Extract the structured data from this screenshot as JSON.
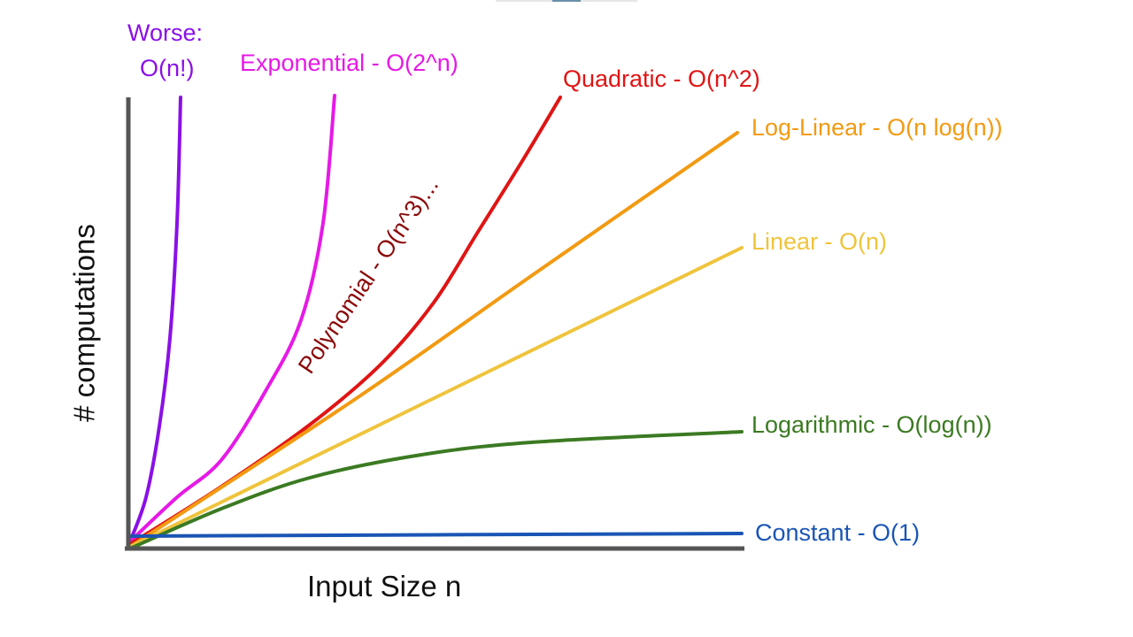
{
  "chart_data": {
    "type": "line",
    "title": "",
    "xlabel": "Input Size n",
    "ylabel": "# computations",
    "grid": false,
    "legend": "inline labels at curve ends",
    "series": [
      {
        "key": "factorial",
        "name": "Worse:",
        "name2": "O(n!)",
        "color": "#8a10e6"
      },
      {
        "key": "exponential",
        "name": "Exponential - O(2^n)",
        "color": "#e619e6"
      },
      {
        "key": "polynomial",
        "name": "Polynomial - O(n^3)...",
        "color": "#8b0a0a"
      },
      {
        "key": "quadratic",
        "name": "Quadratic - O(n^2)",
        "color": "#e01414"
      },
      {
        "key": "loglinear",
        "name": "Log-Linear - O(n log(n))",
        "color": "#f29a12"
      },
      {
        "key": "linear",
        "name": "Linear - O(n)",
        "color": "#efc43c"
      },
      {
        "key": "logarithmic",
        "name": "Logarithmic - O(log(n))",
        "color": "#3b7a22"
      },
      {
        "key": "constant",
        "name": "Constant - O(1)",
        "color": "#1a55b5"
      }
    ],
    "axis_color": "#555555"
  }
}
